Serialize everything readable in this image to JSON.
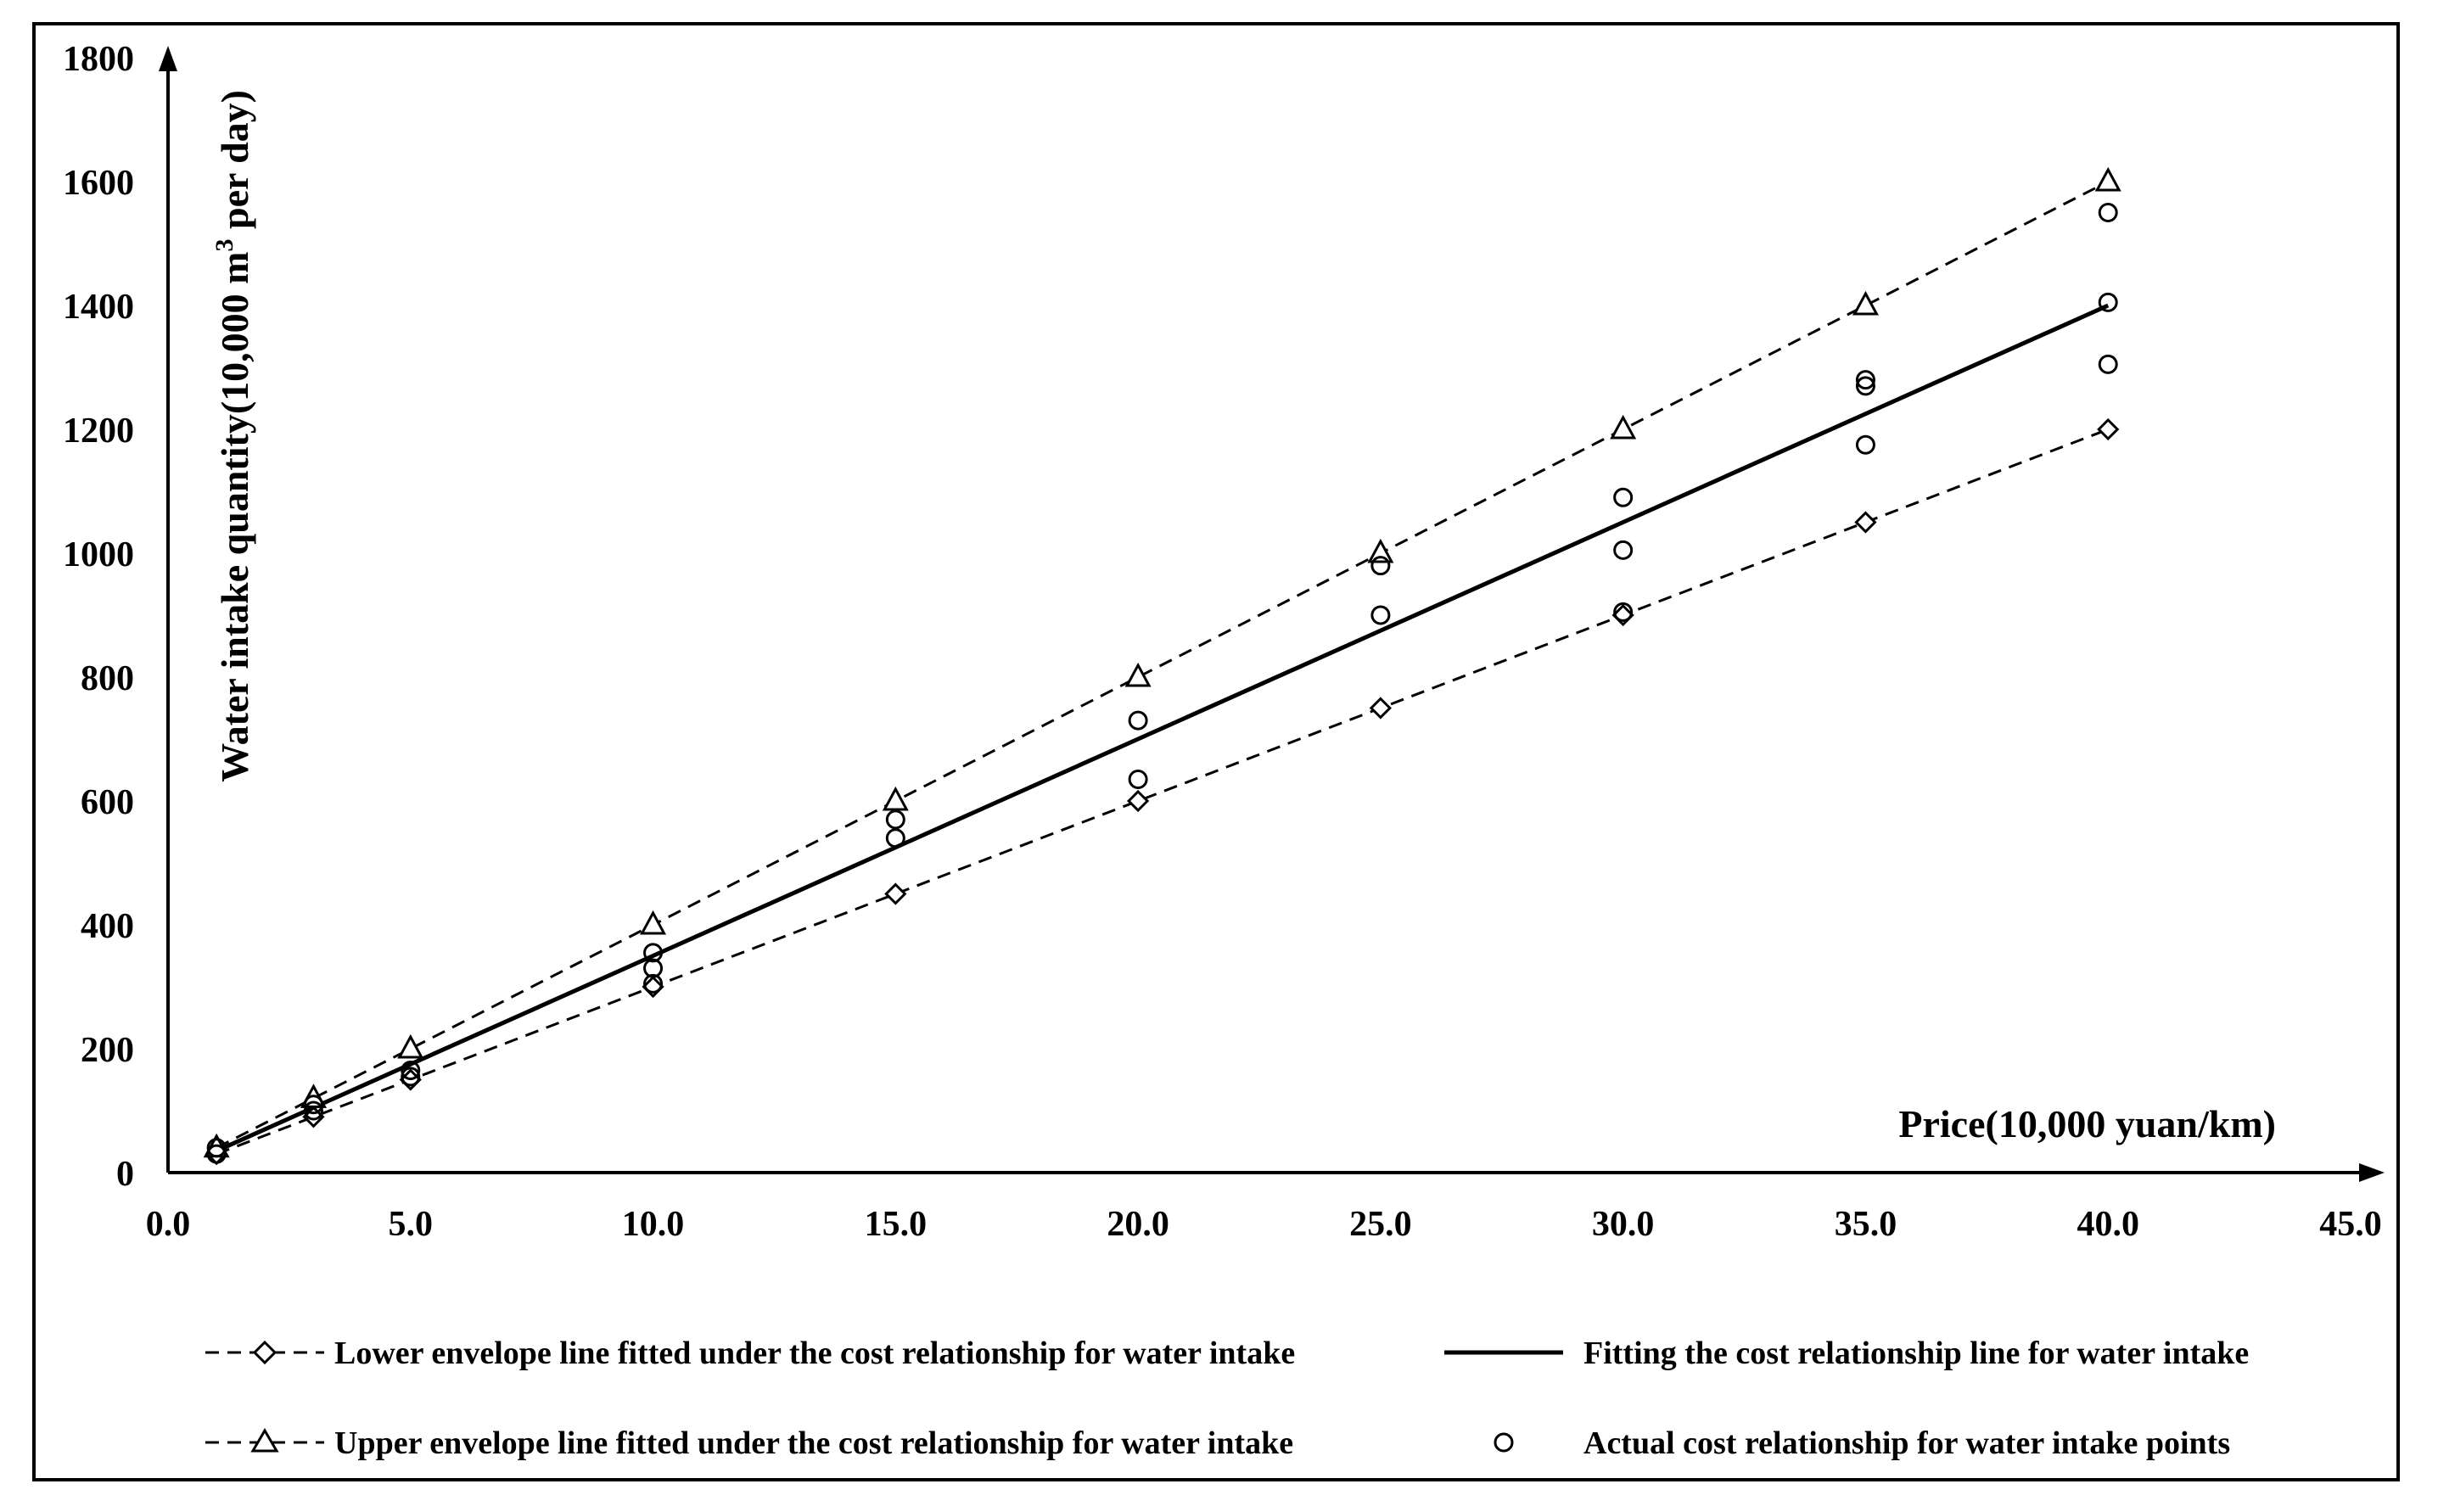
{
  "chart_data": {
    "type": "scatter",
    "xlabel": "Price(10,000 yuan/km)",
    "ylabel_parts": [
      "Water intake quantity(10,000 m",
      "3",
      " per day)"
    ],
    "xlim": [
      0,
      45
    ],
    "ylim": [
      0,
      1800
    ],
    "x_ticks": [
      0,
      5,
      10,
      15,
      20,
      25,
      30,
      35,
      40,
      45
    ],
    "x_tick_labels": [
      "0.0",
      "5.0",
      "10.0",
      "15.0",
      "20.0",
      "25.0",
      "30.0",
      "35.0",
      "40.0",
      "45.0"
    ],
    "y_ticks": [
      0,
      200,
      400,
      600,
      800,
      1000,
      1200,
      1400,
      1600,
      1800
    ],
    "y_tick_labels": [
      "0",
      "200",
      "400",
      "600",
      "800",
      "1000",
      "1200",
      "1400",
      "1600",
      "1800"
    ],
    "series": [
      {
        "name": "Lower envelope line fitted under the cost relationship for water intake",
        "style": "dashed-diamond",
        "x": [
          1,
          3,
          5,
          10,
          15,
          20,
          25,
          30,
          35,
          40
        ],
        "y": [
          30,
          90,
          150,
          300,
          450,
          600,
          750,
          900,
          1050,
          1200
        ]
      },
      {
        "name": "Fitting the cost relationship line for water intake",
        "style": "solid",
        "x": [
          1,
          3,
          5,
          10,
          15,
          20,
          25,
          30,
          35,
          40
        ],
        "y": [
          35,
          105,
          175,
          350,
          525,
          700,
          875,
          1050,
          1225,
          1400
        ]
      },
      {
        "name": "Upper envelope line fitted under the cost relationship for water intake",
        "style": "dashed-triangle",
        "x": [
          1,
          3,
          5,
          10,
          15,
          20,
          25,
          30,
          35,
          40
        ],
        "y": [
          40,
          120,
          200,
          400,
          600,
          800,
          1000,
          1200,
          1400,
          1600
        ]
      },
      {
        "name": "Actual cost relationship for water intake points",
        "style": "circle",
        "x": [
          1,
          1,
          3,
          3,
          5,
          5,
          10,
          10,
          10,
          15,
          15,
          20,
          20,
          25,
          25,
          30,
          30,
          30,
          35,
          35,
          35,
          40,
          40,
          40
        ],
        "y": [
          30,
          40,
          100,
          110,
          155,
          165,
          305,
          330,
          355,
          540,
          570,
          635,
          730,
          900,
          980,
          905,
          1005,
          1090,
          1175,
          1270,
          1280,
          1305,
          1405,
          1550
        ]
      }
    ],
    "legend": {
      "placement": "bottom",
      "entries": [
        "Lower envelope line fitted under the cost relationship for water intake",
        "Fitting the cost relationship line for water intake",
        "Upper envelope line fitted under the cost relationship for water intake",
        "Actual cost relationship for water intake points"
      ]
    }
  }
}
